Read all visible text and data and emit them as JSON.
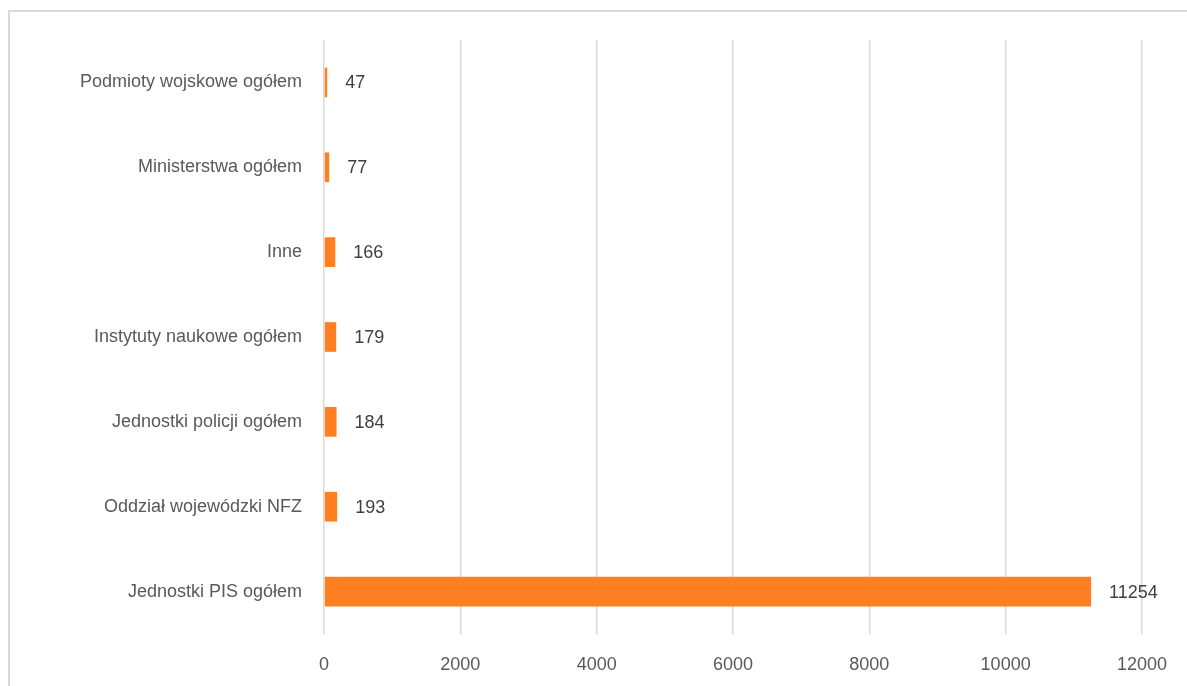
{
  "chart_data": {
    "type": "bar",
    "orientation": "horizontal",
    "categories": [
      "Podmioty wojskowe ogółem",
      "Ministerstwa ogółem",
      "Inne",
      "Instytuty naukowe ogółem",
      "Jednostki policji ogółem",
      "Oddział wojewódzki NFZ",
      "Jednostki PIS ogółem"
    ],
    "values": [
      47,
      77,
      166,
      179,
      184,
      193,
      11254
    ],
    "color": "#fe8022",
    "xlim": [
      0,
      12000
    ],
    "xticks": [
      0,
      2000,
      4000,
      6000,
      8000,
      10000,
      12000
    ],
    "grid": "x",
    "data_labels": true
  }
}
